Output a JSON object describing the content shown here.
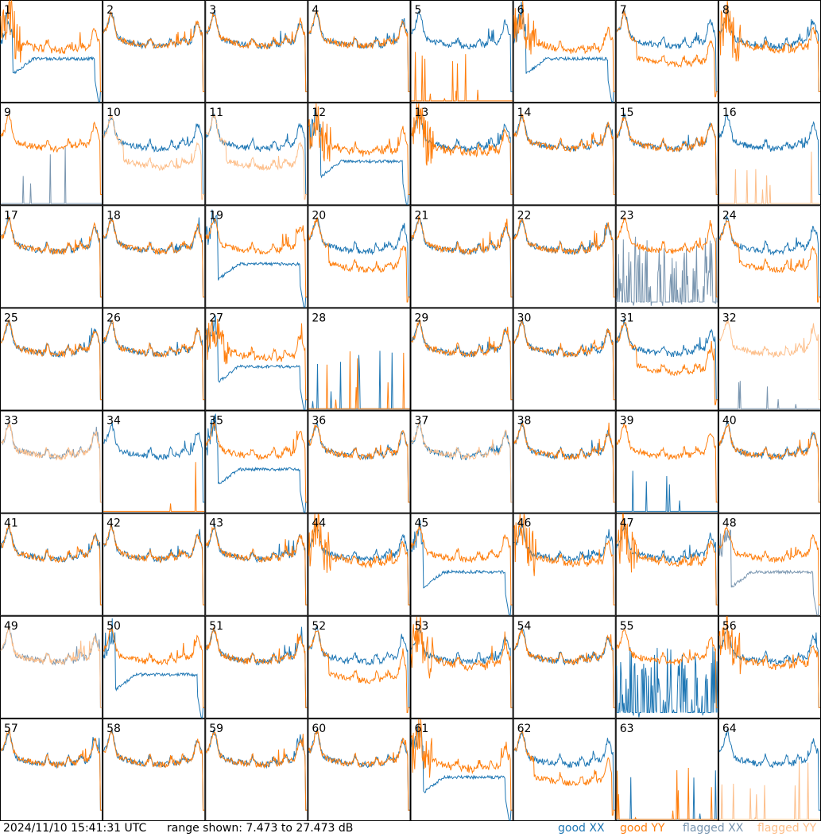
{
  "colors": {
    "good_xx": "#1f77b4",
    "good_yy": "#ff7f0e",
    "flagged_xx": "#7a96b0",
    "flagged_yy": "#fdbf8b"
  },
  "footer": {
    "timestamp": "2024/11/10 15:41:31 UTC",
    "range": "range shown: 7.473 to 27.473 dB",
    "legend_good_xx": "good XX",
    "legend_good_yy": "good YY",
    "legend_flagged_xx": "flagged XX",
    "legend_flagged_yy": "flagged YY"
  },
  "chart_data": {
    "type": "line",
    "layout": "8x8 small multiples",
    "ylim": [
      7.473,
      27.473
    ],
    "yunit": "dB",
    "series_kinds": [
      "good XX",
      "good YY",
      "flagged XX",
      "flagged YY"
    ],
    "panels": [
      {
        "id": "1",
        "xx": {
          "s": "good",
          "p": "dip"
        },
        "yy": {
          "s": "good",
          "p": "noisy"
        }
      },
      {
        "id": "2",
        "xx": {
          "s": "good",
          "p": "normal"
        },
        "yy": {
          "s": "good",
          "p": "normal"
        }
      },
      {
        "id": "3",
        "xx": {
          "s": "good",
          "p": "normal"
        },
        "yy": {
          "s": "good",
          "p": "normal"
        }
      },
      {
        "id": "4",
        "xx": {
          "s": "good",
          "p": "normal"
        },
        "yy": {
          "s": "good",
          "p": "normal"
        }
      },
      {
        "id": "5",
        "xx": {
          "s": "good",
          "p": "normal"
        },
        "yy": {
          "s": "good",
          "p": "dead"
        }
      },
      {
        "id": "6",
        "xx": {
          "s": "good",
          "p": "dip"
        },
        "yy": {
          "s": "good",
          "p": "noisy"
        }
      },
      {
        "id": "7",
        "xx": {
          "s": "good",
          "p": "normal"
        },
        "yy": {
          "s": "good",
          "p": "low"
        }
      },
      {
        "id": "8",
        "xx": {
          "s": "good",
          "p": "normal"
        },
        "yy": {
          "s": "good",
          "p": "noisy"
        }
      },
      {
        "id": "9",
        "xx": {
          "s": "flagged",
          "p": "dead"
        },
        "yy": {
          "s": "good",
          "p": "normal"
        }
      },
      {
        "id": "10",
        "xx": {
          "s": "good",
          "p": "normal"
        },
        "yy": {
          "s": "flagged",
          "p": "low"
        }
      },
      {
        "id": "11",
        "xx": {
          "s": "good",
          "p": "normal"
        },
        "yy": {
          "s": "flagged",
          "p": "low"
        }
      },
      {
        "id": "12",
        "xx": {
          "s": "good",
          "p": "dip"
        },
        "yy": {
          "s": "good",
          "p": "noisy"
        }
      },
      {
        "id": "13",
        "xx": {
          "s": "good",
          "p": "normal"
        },
        "yy": {
          "s": "good",
          "p": "noisy"
        }
      },
      {
        "id": "14",
        "xx": {
          "s": "good",
          "p": "normal"
        },
        "yy": {
          "s": "good",
          "p": "normal"
        }
      },
      {
        "id": "15",
        "xx": {
          "s": "good",
          "p": "normal"
        },
        "yy": {
          "s": "good",
          "p": "normal"
        }
      },
      {
        "id": "16",
        "xx": {
          "s": "good",
          "p": "normal"
        },
        "yy": {
          "s": "flagged",
          "p": "dead"
        }
      },
      {
        "id": "17",
        "xx": {
          "s": "good",
          "p": "normal"
        },
        "yy": {
          "s": "good",
          "p": "normal"
        }
      },
      {
        "id": "18",
        "xx": {
          "s": "good",
          "p": "normal"
        },
        "yy": {
          "s": "good",
          "p": "normal"
        }
      },
      {
        "id": "19",
        "xx": {
          "s": "good",
          "p": "dip"
        },
        "yy": {
          "s": "good",
          "p": "normal"
        }
      },
      {
        "id": "20",
        "xx": {
          "s": "good",
          "p": "normal"
        },
        "yy": {
          "s": "good",
          "p": "low"
        }
      },
      {
        "id": "21",
        "xx": {
          "s": "good",
          "p": "normal"
        },
        "yy": {
          "s": "good",
          "p": "normal"
        }
      },
      {
        "id": "22",
        "xx": {
          "s": "good",
          "p": "normal"
        },
        "yy": {
          "s": "good",
          "p": "normal"
        }
      },
      {
        "id": "23",
        "xx": {
          "s": "flagged",
          "p": "spiky"
        },
        "yy": {
          "s": "good",
          "p": "normal"
        }
      },
      {
        "id": "24",
        "xx": {
          "s": "good",
          "p": "normal"
        },
        "yy": {
          "s": "good",
          "p": "low"
        }
      },
      {
        "id": "25",
        "xx": {
          "s": "good",
          "p": "normal"
        },
        "yy": {
          "s": "good",
          "p": "normal"
        }
      },
      {
        "id": "26",
        "xx": {
          "s": "good",
          "p": "normal"
        },
        "yy": {
          "s": "good",
          "p": "normal"
        }
      },
      {
        "id": "27",
        "xx": {
          "s": "good",
          "p": "dip"
        },
        "yy": {
          "s": "good",
          "p": "noisy"
        }
      },
      {
        "id": "28",
        "xx": {
          "s": "good",
          "p": "dead"
        },
        "yy": {
          "s": "good",
          "p": "dead"
        }
      },
      {
        "id": "29",
        "xx": {
          "s": "good",
          "p": "normal"
        },
        "yy": {
          "s": "good",
          "p": "normal"
        }
      },
      {
        "id": "30",
        "xx": {
          "s": "good",
          "p": "normal"
        },
        "yy": {
          "s": "good",
          "p": "normal"
        }
      },
      {
        "id": "31",
        "xx": {
          "s": "good",
          "p": "normal"
        },
        "yy": {
          "s": "good",
          "p": "low"
        }
      },
      {
        "id": "32",
        "xx": {
          "s": "flagged",
          "p": "dead"
        },
        "yy": {
          "s": "flagged",
          "p": "normal"
        }
      },
      {
        "id": "33",
        "xx": {
          "s": "flagged",
          "p": "normal"
        },
        "yy": {
          "s": "flagged",
          "p": "normal"
        }
      },
      {
        "id": "34",
        "xx": {
          "s": "good",
          "p": "normal"
        },
        "yy": {
          "s": "good",
          "p": "dead"
        }
      },
      {
        "id": "35",
        "xx": {
          "s": "good",
          "p": "dip"
        },
        "yy": {
          "s": "good",
          "p": "normal"
        }
      },
      {
        "id": "36",
        "xx": {
          "s": "good",
          "p": "normal"
        },
        "yy": {
          "s": "good",
          "p": "normal"
        }
      },
      {
        "id": "37",
        "xx": {
          "s": "good",
          "p": "normal"
        },
        "yy": {
          "s": "flagged",
          "p": "normal"
        }
      },
      {
        "id": "38",
        "xx": {
          "s": "good",
          "p": "normal"
        },
        "yy": {
          "s": "good",
          "p": "normal"
        }
      },
      {
        "id": "39",
        "xx": {
          "s": "good",
          "p": "dead"
        },
        "yy": {
          "s": "good",
          "p": "normal"
        }
      },
      {
        "id": "40",
        "xx": {
          "s": "good",
          "p": "normal"
        },
        "yy": {
          "s": "good",
          "p": "normal"
        }
      },
      {
        "id": "41",
        "xx": {
          "s": "good",
          "p": "normal"
        },
        "yy": {
          "s": "good",
          "p": "normal"
        }
      },
      {
        "id": "42",
        "xx": {
          "s": "good",
          "p": "normal"
        },
        "yy": {
          "s": "good",
          "p": "normal"
        }
      },
      {
        "id": "43",
        "xx": {
          "s": "good",
          "p": "normal"
        },
        "yy": {
          "s": "good",
          "p": "normal"
        }
      },
      {
        "id": "44",
        "xx": {
          "s": "good",
          "p": "normal"
        },
        "yy": {
          "s": "good",
          "p": "noisy"
        }
      },
      {
        "id": "45",
        "xx": {
          "s": "good",
          "p": "dip"
        },
        "yy": {
          "s": "good",
          "p": "normal"
        }
      },
      {
        "id": "46",
        "xx": {
          "s": "good",
          "p": "normal"
        },
        "yy": {
          "s": "good",
          "p": "noisy"
        }
      },
      {
        "id": "47",
        "xx": {
          "s": "good",
          "p": "normal"
        },
        "yy": {
          "s": "good",
          "p": "noisy"
        }
      },
      {
        "id": "48",
        "xx": {
          "s": "flagged",
          "p": "dip"
        },
        "yy": {
          "s": "good",
          "p": "normal"
        }
      },
      {
        "id": "49",
        "xx": {
          "s": "flagged",
          "p": "normal"
        },
        "yy": {
          "s": "flagged",
          "p": "normal"
        }
      },
      {
        "id": "50",
        "xx": {
          "s": "good",
          "p": "dip"
        },
        "yy": {
          "s": "good",
          "p": "normal"
        }
      },
      {
        "id": "51",
        "xx": {
          "s": "good",
          "p": "normal"
        },
        "yy": {
          "s": "good",
          "p": "normal"
        }
      },
      {
        "id": "52",
        "xx": {
          "s": "good",
          "p": "normal"
        },
        "yy": {
          "s": "good",
          "p": "low"
        }
      },
      {
        "id": "53",
        "xx": {
          "s": "good",
          "p": "normal"
        },
        "yy": {
          "s": "good",
          "p": "noisy"
        }
      },
      {
        "id": "54",
        "xx": {
          "s": "good",
          "p": "normal"
        },
        "yy": {
          "s": "good",
          "p": "normal"
        }
      },
      {
        "id": "55",
        "xx": {
          "s": "good",
          "p": "spiky"
        },
        "yy": {
          "s": "good",
          "p": "normal"
        }
      },
      {
        "id": "56",
        "xx": {
          "s": "good",
          "p": "normal"
        },
        "yy": {
          "s": "good",
          "p": "noisy"
        }
      },
      {
        "id": "57",
        "xx": {
          "s": "good",
          "p": "normal"
        },
        "yy": {
          "s": "good",
          "p": "normal"
        }
      },
      {
        "id": "58",
        "xx": {
          "s": "good",
          "p": "normal"
        },
        "yy": {
          "s": "good",
          "p": "normal"
        }
      },
      {
        "id": "59",
        "xx": {
          "s": "good",
          "p": "normal"
        },
        "yy": {
          "s": "good",
          "p": "normal"
        }
      },
      {
        "id": "60",
        "xx": {
          "s": "good",
          "p": "normal"
        },
        "yy": {
          "s": "good",
          "p": "normal"
        }
      },
      {
        "id": "61",
        "xx": {
          "s": "good",
          "p": "dip"
        },
        "yy": {
          "s": "good",
          "p": "noisy"
        }
      },
      {
        "id": "62",
        "xx": {
          "s": "good",
          "p": "normal"
        },
        "yy": {
          "s": "good",
          "p": "low"
        }
      },
      {
        "id": "63",
        "xx": {
          "s": "good",
          "p": "dead"
        },
        "yy": {
          "s": "good",
          "p": "dead"
        }
      },
      {
        "id": "64",
        "xx": {
          "s": "good",
          "p": "normal"
        },
        "yy": {
          "s": "flagged",
          "p": "dead"
        }
      }
    ]
  }
}
